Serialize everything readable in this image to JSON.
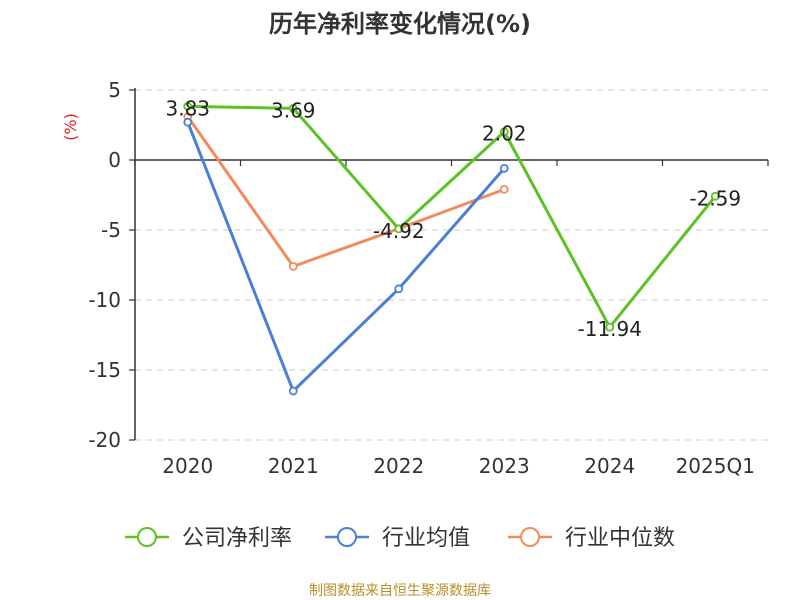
{
  "chart_data": {
    "type": "line",
    "title": "历年净利率变化情况(%)",
    "ylabel": "(%)",
    "categories": [
      "2020",
      "2021",
      "2022",
      "2023",
      "2024",
      "2025Q1"
    ],
    "ylim": [
      -20,
      5
    ],
    "yticks": [
      5,
      0,
      -5,
      -10,
      -15,
      -20
    ],
    "ytick_labels": [
      "5",
      "0",
      "-5",
      "-10",
      "-15",
      "-20"
    ],
    "grid": true,
    "legend_position": "bottom",
    "series": [
      {
        "name": "公司净利率",
        "color": "#5cc225",
        "values": [
          3.83,
          3.69,
          -4.92,
          2.02,
          -11.94,
          -2.59
        ],
        "labels": [
          "3.83",
          "3.69",
          "-4.92",
          "2.02",
          "-11.94",
          "-2.59"
        ]
      },
      {
        "name": "行业均值",
        "color": "#4a7fd6",
        "values": [
          2.7,
          -16.5,
          -9.2,
          -0.6,
          null,
          null
        ]
      },
      {
        "name": "行业中位数",
        "color": "#f38b5a",
        "values": [
          3.1,
          -7.6,
          -4.9,
          -2.1,
          null,
          null
        ]
      }
    ],
    "source": "制图数据来自恒生聚源数据库"
  }
}
